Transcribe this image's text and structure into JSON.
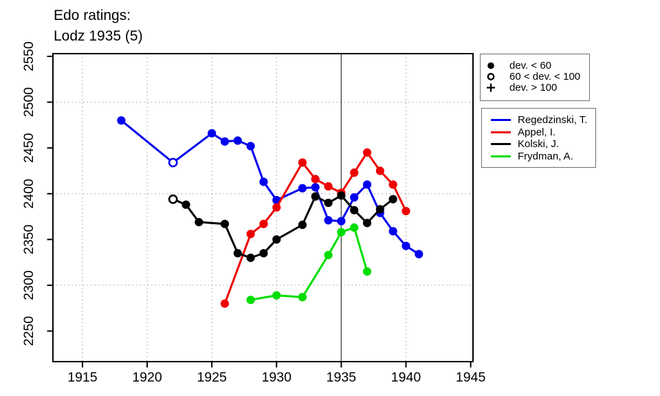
{
  "title": {
    "line1": "Edo ratings:",
    "line2": "Lodz 1935 (5)"
  },
  "chart_data": {
    "type": "line",
    "title": "Edo ratings: Lodz 1935 (5)",
    "xlabel": "",
    "ylabel": "",
    "xlim": [
      1912.72,
      1945.18
    ],
    "ylim": [
      2216.6,
      2553.0
    ],
    "x_ticks": [
      1915,
      1920,
      1925,
      1930,
      1935,
      1940,
      1945
    ],
    "y_ticks": [
      2250,
      2300,
      2350,
      2400,
      2450,
      2500,
      2550
    ],
    "grid": {
      "on": true,
      "x_lines": [
        1915,
        1920,
        1925,
        1930,
        1935,
        1940
      ],
      "y_lines": [
        2300,
        2400,
        2500
      ]
    },
    "event_line_x": 1935,
    "legend_position": "right",
    "series": [
      {
        "name": "Regedzinski, T.",
        "color": "#0000ee",
        "points": [
          [
            1918,
            2480
          ],
          [
            1922,
            2434
          ],
          [
            1925,
            2466
          ],
          [
            1926,
            2457
          ],
          [
            1927,
            2458
          ],
          [
            1928,
            2452
          ],
          [
            1929,
            2413
          ],
          [
            1930,
            2393
          ],
          [
            1932,
            2406
          ],
          [
            1933,
            2407
          ],
          [
            1934,
            2371
          ],
          [
            1935,
            2370
          ],
          [
            1936,
            2396
          ],
          [
            1937,
            2410
          ],
          [
            1938,
            2379
          ],
          [
            1939,
            2359
          ],
          [
            1940,
            2343
          ],
          [
            1941,
            2334
          ]
        ],
        "open_markers": [
          1922
        ]
      },
      {
        "name": "Appel, I.",
        "color": "#ee0000",
        "points": [
          [
            1926,
            2280
          ],
          [
            1928,
            2356
          ],
          [
            1929,
            2367
          ],
          [
            1930,
            2385
          ],
          [
            1932,
            2434
          ],
          [
            1933,
            2416
          ],
          [
            1934,
            2408
          ],
          [
            1935,
            2401
          ],
          [
            1936,
            2423
          ],
          [
            1937,
            2445
          ],
          [
            1938,
            2425
          ],
          [
            1939,
            2410
          ],
          [
            1940,
            2381
          ]
        ],
        "open_markers": []
      },
      {
        "name": "Kolski, J.",
        "color": "#000000",
        "points": [
          [
            1922,
            2394
          ],
          [
            1923,
            2388
          ],
          [
            1924,
            2369
          ],
          [
            1926,
            2367
          ],
          [
            1927,
            2335
          ],
          [
            1928,
            2330
          ],
          [
            1929,
            2335
          ],
          [
            1930,
            2350
          ],
          [
            1932,
            2366
          ],
          [
            1933,
            2397
          ],
          [
            1934,
            2390
          ],
          [
            1935,
            2398
          ],
          [
            1936,
            2382
          ],
          [
            1937,
            2368
          ],
          [
            1938,
            2383
          ],
          [
            1939,
            2394
          ]
        ],
        "open_markers": [
          1922
        ]
      },
      {
        "name": "Frydman, A.",
        "color": "#00dd00",
        "points": [
          [
            1928,
            2284
          ],
          [
            1930,
            2289
          ],
          [
            1932,
            2287
          ],
          [
            1934,
            2333
          ],
          [
            1935,
            2358
          ],
          [
            1936,
            2363
          ],
          [
            1937,
            2315
          ]
        ],
        "open_markers": []
      }
    ]
  },
  "marker_legend": {
    "items": [
      {
        "symbol": "filled-circle",
        "label": "dev. < 60"
      },
      {
        "symbol": "open-circle",
        "label": "60 < dev. < 100"
      },
      {
        "symbol": "plus",
        "label": "dev. > 100"
      }
    ]
  },
  "colors": {
    "grid": "#9a9a9a",
    "event_line": "#4a4a4a",
    "axis": "#000000",
    "background": "#ffffff",
    "legend_border": "#6e6e6e"
  }
}
